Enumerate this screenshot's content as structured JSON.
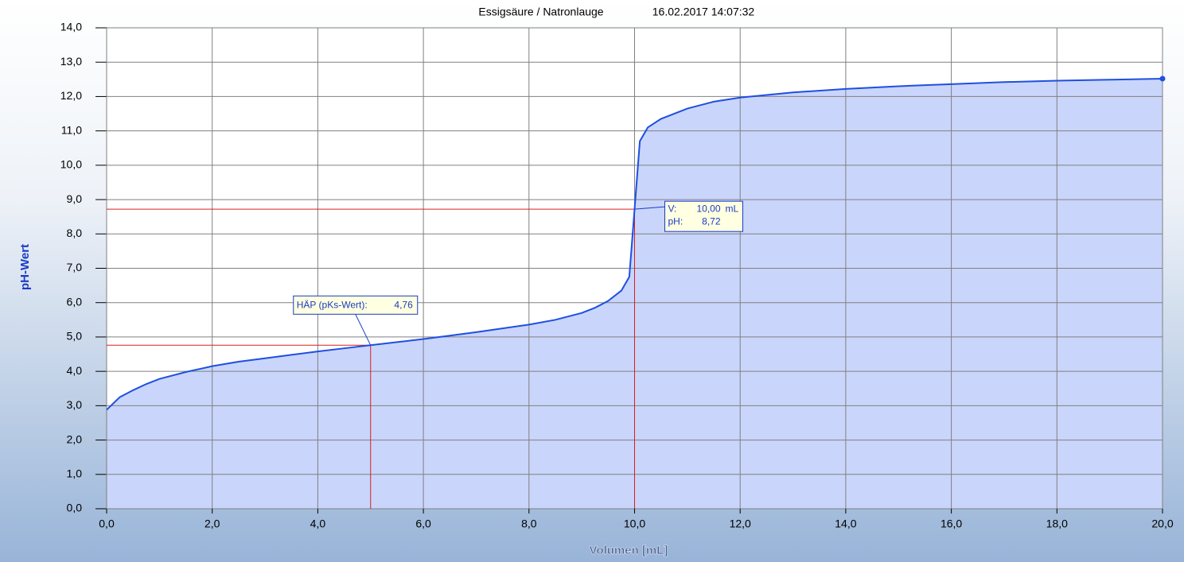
{
  "chart_data": {
    "type": "line",
    "title": "Essigsäure / Natronlauge",
    "subtitle": "16.02.2017 14:07:32",
    "y_label": "pH-Wert",
    "x_label": "Volumen [mL]",
    "x": [
      0,
      0.25,
      0.5,
      0.75,
      1,
      1.5,
      2,
      2.5,
      3,
      3.5,
      4,
      4.5,
      5,
      5.5,
      6,
      6.5,
      7,
      7.5,
      8,
      8.5,
      9,
      9.25,
      9.5,
      9.75,
      9.9,
      10,
      10.1,
      10.25,
      10.5,
      11,
      11.5,
      12,
      13,
      14,
      15,
      16,
      17,
      18,
      19,
      20
    ],
    "values": [
      2.88,
      3.25,
      3.45,
      3.63,
      3.78,
      3.98,
      4.15,
      4.28,
      4.38,
      4.48,
      4.58,
      4.67,
      4.76,
      4.85,
      4.94,
      5.04,
      5.14,
      5.25,
      5.36,
      5.5,
      5.7,
      5.85,
      6.05,
      6.35,
      6.75,
      8.72,
      10.7,
      11.1,
      11.35,
      11.65,
      11.85,
      11.97,
      12.12,
      12.22,
      12.3,
      12.36,
      12.42,
      12.46,
      12.49,
      12.52
    ],
    "color": "#1f4fe0",
    "fill_color": "#c9d5fb",
    "grid": true,
    "xlim": [
      0,
      20
    ],
    "ylim": [
      0,
      14
    ],
    "xticks": [
      {
        "value": 0,
        "label": "0,0"
      },
      {
        "value": 2,
        "label": "2,0"
      },
      {
        "value": 4,
        "label": "4,0"
      },
      {
        "value": 6,
        "label": "6,0"
      },
      {
        "value": 8,
        "label": "8,0"
      },
      {
        "value": 10,
        "label": "10,0"
      },
      {
        "value": 12,
        "label": "12,0"
      },
      {
        "value": 14,
        "label": "14,0"
      },
      {
        "value": 16,
        "label": "16,0"
      },
      {
        "value": 18,
        "label": "18,0"
      },
      {
        "value": 20,
        "label": "20,0"
      }
    ],
    "yticks": [
      {
        "value": 0,
        "label": "0,0"
      },
      {
        "value": 1,
        "label": "1,0"
      },
      {
        "value": 2,
        "label": "2,0"
      },
      {
        "value": 3,
        "label": "3,0"
      },
      {
        "value": 4,
        "label": "4,0"
      },
      {
        "value": 5,
        "label": "5,0"
      },
      {
        "value": 6,
        "label": "6,0"
      },
      {
        "value": 7,
        "label": "7,0"
      },
      {
        "value": 8,
        "label": "8,0"
      },
      {
        "value": 9,
        "label": "9,0"
      },
      {
        "value": 10,
        "label": "10,0"
      },
      {
        "value": 11,
        "label": "11,0"
      },
      {
        "value": 12,
        "label": "12,0"
      },
      {
        "value": 13,
        "label": "13,0"
      },
      {
        "value": 14,
        "label": "14,0"
      }
    ],
    "half_equivalence": {
      "text": "HÄP (pKs-Wert):",
      "x": 5,
      "y": {
        "value": 4.76,
        "label": "4,76"
      }
    },
    "equivalence": {
      "v_text": "V:",
      "v": {
        "value": 10,
        "label": "10,00"
      },
      "v_unit": "mL",
      "ph_text": "pH:",
      "ph": {
        "value": 8.72,
        "label": "8,72"
      }
    },
    "marker_color": "#d42020"
  }
}
